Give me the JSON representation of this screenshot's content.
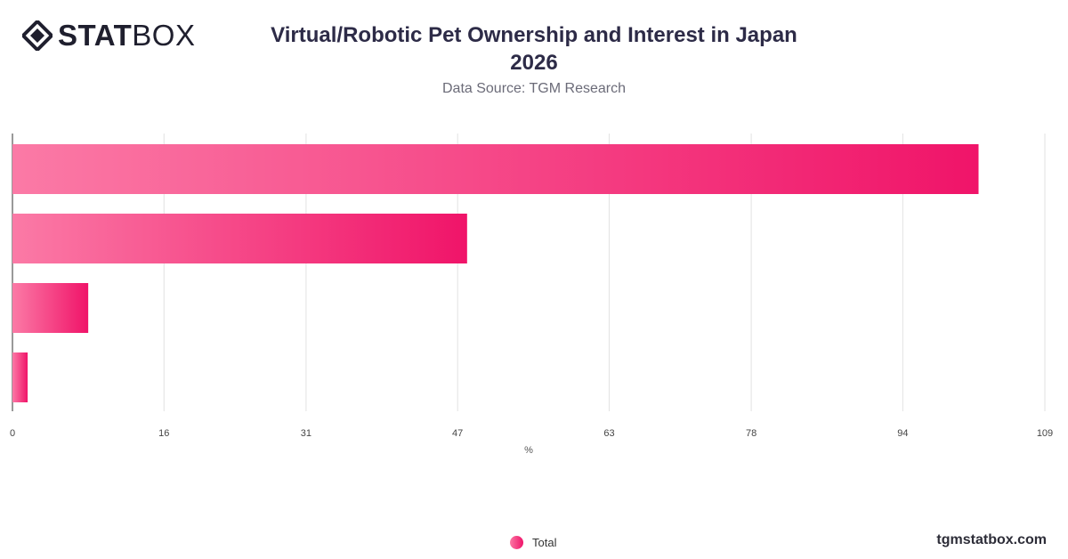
{
  "brand": {
    "logo_bold": "STAT",
    "logo_light": "BOX",
    "site": "tgmstatbox.com"
  },
  "chart_data": {
    "type": "bar",
    "orientation": "horizontal",
    "title_line1": "Virtual/Robotic Pet Ownership and Interest in Japan",
    "title_line2": "2026",
    "subtitle": "Data Source: TGM Research",
    "xlabel": "%",
    "xlim": [
      0,
      109
    ],
    "x_ticks": [
      "0",
      "16",
      "31",
      "47",
      "63",
      "78",
      "94",
      "109"
    ],
    "categories": [
      "",
      "",
      "",
      ""
    ],
    "series": [
      {
        "name": "Total",
        "values": [
          102,
          48,
          8,
          1.6
        ]
      }
    ],
    "grid": true,
    "legend": "bottom-center",
    "colors": {
      "bar_start": "#fb7aa6",
      "bar_end": "#f01469",
      "grid": "#e2e2e2",
      "axis": "#333333"
    }
  }
}
